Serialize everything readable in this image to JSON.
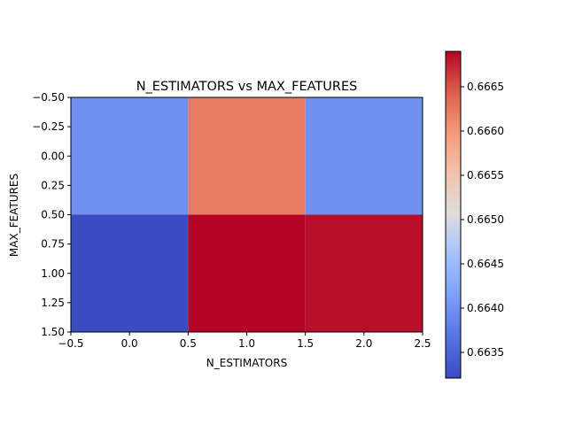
{
  "chart_data": {
    "type": "heatmap",
    "title": "N_ESTIMATORS vs MAX_FEATURES",
    "xlabel": "N_ESTIMATORS",
    "ylabel": "MAX_FEATURES",
    "xlim": [
      -0.5,
      2.5
    ],
    "ylim": [
      1.5,
      -0.5
    ],
    "xticks": [
      "−0.5",
      "0.0",
      "0.5",
      "1.0",
      "1.5",
      "2.0",
      "2.5"
    ],
    "yticks": [
      "−0.50",
      "−0.25",
      "0.00",
      "0.25",
      "0.50",
      "0.75",
      "1.00",
      "1.25",
      "1.50"
    ],
    "values": [
      [
        0.66399,
        0.66622,
        0.66399
      ],
      [
        0.66321,
        0.6669,
        0.66685
      ]
    ],
    "colormap": "coolwarm",
    "colorbar": {
      "min": 0.66321,
      "max": 0.6669,
      "ticks": [
        0.6635,
        0.664,
        0.6645,
        0.665,
        0.6655,
        0.666,
        0.6665
      ],
      "tick_labels": [
        "0.6635",
        "0.6640",
        "0.6645",
        "0.6650",
        "0.6655",
        "0.6660",
        "0.6665"
      ]
    }
  }
}
